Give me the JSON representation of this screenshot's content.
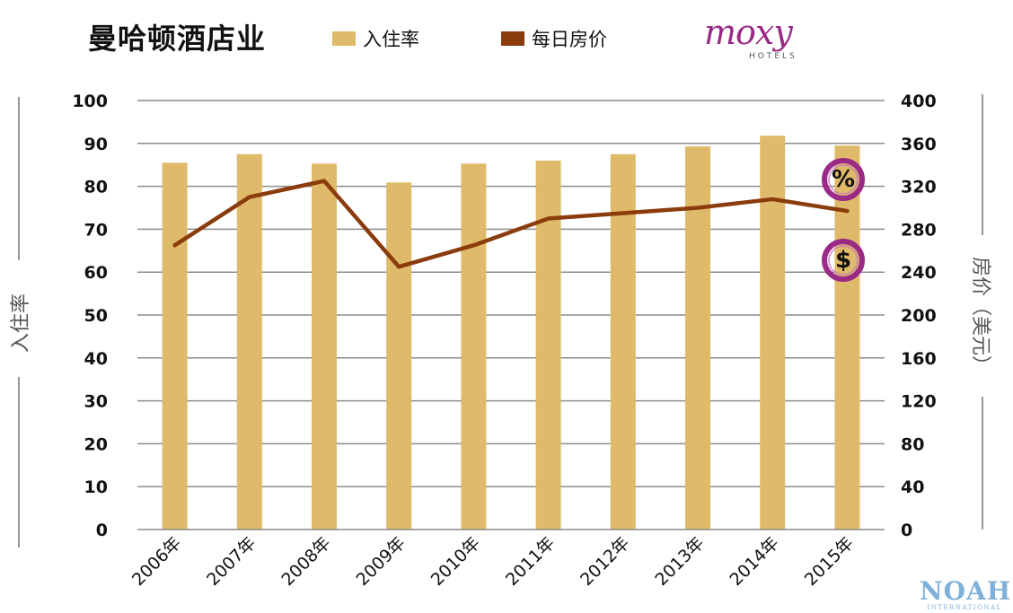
{
  "title": "曼哈顿酒店业",
  "legend": {
    "occupancy": "入住率",
    "rate": "每日房价"
  },
  "colors": {
    "bar": "#dfba6a",
    "line": "#8a3c0c",
    "grid": "#8c8c8c",
    "axis_text": "#111111",
    "badge_ring": "#9a2a86"
  },
  "logo": {
    "brand": "moxy",
    "sub": "HOTELS"
  },
  "watermark": {
    "brand": "NOAH",
    "sub": "INTERNATIONAL"
  },
  "badges": {
    "percent": "%",
    "dollar": "$"
  },
  "chart_data": {
    "type": "bar",
    "categories": [
      "2006年",
      "2007年",
      "2008年",
      "2009年",
      "2010年",
      "2011年",
      "2012年",
      "2013年",
      "2014年",
      "2015年"
    ],
    "series": [
      {
        "name": "入住率",
        "type": "bar",
        "axis": "left",
        "values": [
          85.5,
          87.5,
          85.3,
          80.9,
          85.3,
          86,
          87.5,
          89.3,
          91.8,
          89.5
        ]
      },
      {
        "name": "每日房价",
        "type": "line",
        "axis": "right",
        "values": [
          265,
          310,
          325,
          245,
          265,
          290,
          295,
          300,
          308,
          297
        ]
      }
    ],
    "y_left": {
      "label": "入住率",
      "range": [
        0,
        100
      ],
      "ticks": [
        "0",
        "10",
        "20",
        "30",
        "40",
        "50",
        "60",
        "70",
        "80",
        "90",
        "100"
      ]
    },
    "y_right": {
      "label": "房价（美元）",
      "range": [
        0,
        400
      ],
      "ticks": [
        "0",
        "40",
        "80",
        "120",
        "160",
        "200",
        "240",
        "280",
        "320",
        "360",
        "400"
      ]
    },
    "grid": true,
    "legend_position": "top"
  }
}
